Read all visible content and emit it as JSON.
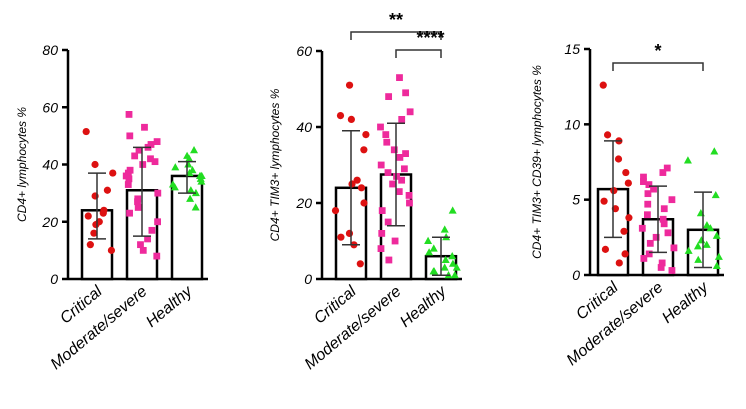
{
  "colors": {
    "critical": "#dd1111",
    "moderate_severe": "#ee2a9c",
    "healthy": "#22dd22",
    "bar_edge": "#000000",
    "error_bar": "#333333"
  },
  "chart_data": [
    {
      "type": "bar",
      "title": "",
      "xlabel": "",
      "ylabel": "CD4+ lymphocytes %",
      "ylim": [
        0,
        80
      ],
      "yticks": [
        0,
        20,
        40,
        60,
        80
      ],
      "categories": [
        "Critical",
        "Moderate/severe",
        "Healthy"
      ],
      "bars": [
        {
          "category": "Critical",
          "mean": 24,
          "sd_low": 14,
          "sd_high": 37,
          "marker": "circle",
          "points": [
            51.5,
            40,
            37,
            31,
            29,
            24,
            23,
            22,
            20,
            19,
            16,
            12,
            10
          ]
        },
        {
          "category": "Moderate/severe",
          "mean": 31,
          "sd_low": 15,
          "sd_high": 46,
          "marker": "square",
          "points": [
            57.5,
            53,
            50,
            48,
            47,
            46,
            45,
            43,
            42,
            41,
            40,
            38,
            37,
            36,
            35,
            33,
            30,
            28,
            27,
            25,
            23,
            20,
            17,
            14,
            12,
            10,
            8
          ]
        },
        {
          "category": "Healthy",
          "mean": 36,
          "sd_low": 30,
          "sd_high": 41,
          "marker": "triangle",
          "points": [
            45,
            43,
            42,
            40,
            39,
            38,
            37,
            36,
            36,
            35,
            34,
            33,
            32,
            31,
            30,
            28,
            25
          ]
        }
      ],
      "significance": []
    },
    {
      "type": "bar",
      "title": "",
      "xlabel": "",
      "ylabel": "CD4+ TIM3+ lymphocytes %",
      "ylim": [
        0,
        60
      ],
      "yticks": [
        0,
        20,
        40,
        60
      ],
      "categories": [
        "Critical",
        "Moderate/severe",
        "Healthy"
      ],
      "bars": [
        {
          "category": "Critical",
          "mean": 24,
          "sd_low": 9,
          "sd_high": 39,
          "marker": "circle",
          "points": [
            51,
            43,
            42,
            38,
            34,
            26,
            25,
            24,
            20,
            18,
            12,
            11,
            9,
            4
          ]
        },
        {
          "category": "Moderate/severe",
          "mean": 27.5,
          "sd_low": 14,
          "sd_high": 41,
          "marker": "square",
          "points": [
            53,
            49,
            48,
            44,
            42,
            40,
            38,
            36,
            34,
            33,
            32,
            30,
            29,
            28,
            27,
            26,
            25,
            23,
            22,
            20,
            18,
            15,
            12,
            10,
            8,
            5
          ]
        },
        {
          "category": "Healthy",
          "mean": 6,
          "sd_low": 1,
          "sd_high": 11,
          "marker": "triangle",
          "points": [
            18,
            13,
            11,
            10,
            8,
            7,
            6,
            5,
            4,
            3,
            3,
            2,
            2,
            1,
            1
          ]
        }
      ],
      "significance": [
        {
          "from": "Critical",
          "to": "Healthy",
          "label": "**",
          "level": 0
        },
        {
          "from": "Moderate/severe",
          "to": "Healthy",
          "label": "****",
          "level": 1
        }
      ]
    },
    {
      "type": "bar",
      "title": "",
      "xlabel": "",
      "ylabel": "CD4+ TIM3+ CD39+ lymphocytes %",
      "ylim": [
        0,
        15
      ],
      "yticks": [
        0,
        5,
        10,
        15
      ],
      "categories": [
        "Critical",
        "Moderate/severe",
        "Healthy"
      ],
      "bars": [
        {
          "category": "Critical",
          "mean": 5.7,
          "sd_low": 2.5,
          "sd_high": 8.9,
          "marker": "circle",
          "points": [
            12.6,
            9.3,
            8.9,
            7.7,
            6.8,
            6.1,
            5.6,
            4.9,
            4.4,
            3.8,
            2.9,
            1.7,
            1.4,
            0.8
          ]
        },
        {
          "category": "Moderate/severe",
          "mean": 3.7,
          "sd_low": 1.5,
          "sd_high": 5.9,
          "marker": "square",
          "points": [
            7.1,
            6.8,
            6.5,
            6.2,
            6.0,
            5.7,
            5.4,
            5.0,
            4.7,
            4.4,
            4.0,
            3.7,
            3.4,
            3.1,
            2.8,
            2.5,
            2.1,
            1.8,
            1.4,
            1.1,
            0.8,
            0.5,
            0.3
          ]
        },
        {
          "category": "Healthy",
          "mean": 3.0,
          "sd_low": 0.5,
          "sd_high": 5.5,
          "marker": "triangle",
          "points": [
            8.2,
            7.6,
            5.3,
            4.1,
            3.3,
            3.1,
            2.6,
            2.3,
            2.0,
            1.9,
            1.6,
            1.2,
            1.0,
            0.6
          ]
        }
      ],
      "significance": [
        {
          "from": "Critical",
          "to": "Healthy",
          "label": "*",
          "level": 0
        }
      ]
    }
  ]
}
